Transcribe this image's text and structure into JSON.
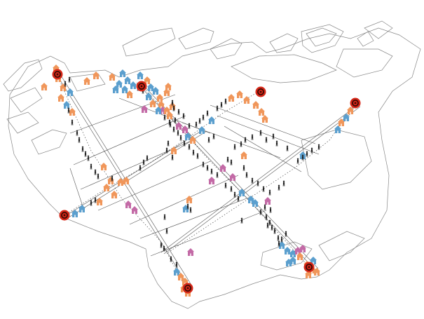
{
  "map": {
    "colors": {
      "background": "#ffffff",
      "block_outline": "#888888",
      "street_line": "#555555",
      "house_orange": "#f0965a",
      "house_blue": "#5b9fce",
      "house_pink": "#c36aa6",
      "target_red": "#d62718",
      "target_dark": "#3a0a05",
      "person": "#222222"
    },
    "icon_kinds": {
      "house": "house-icon",
      "target": "target-icon",
      "person": "person-icon"
    }
  }
}
